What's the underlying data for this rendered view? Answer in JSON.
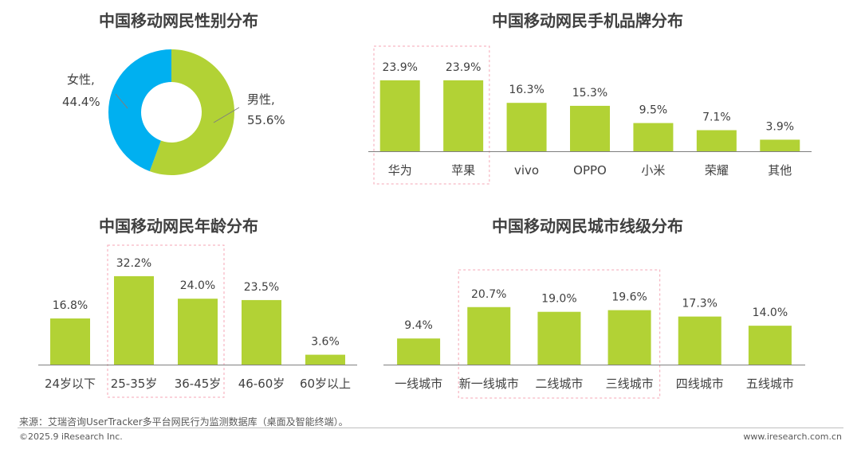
{
  "colors": {
    "bar": "#b2d235",
    "male": "#b2d235",
    "female": "#00b0f0",
    "axis": "#7f7f7f",
    "highlight_box": "#f4a6b4"
  },
  "chart_data": [
    {
      "type": "pie",
      "title": "中国移动网民性别分布",
      "categories": [
        "男性",
        "女性"
      ],
      "values": [
        55.6,
        44.4
      ],
      "labels": [
        "男性,",
        "女性,"
      ],
      "value_labels": [
        "55.6%",
        "44.4%"
      ],
      "unit": "%",
      "donut": true
    },
    {
      "type": "bar",
      "title": "中国移动网民手机品牌分布",
      "categories": [
        "华为",
        "苹果",
        "vivo",
        "OPPO",
        "小米",
        "荣耀",
        "其他"
      ],
      "values": [
        23.9,
        23.9,
        16.3,
        15.3,
        9.5,
        7.1,
        3.9
      ],
      "value_labels": [
        "23.9%",
        "23.9%",
        "16.3%",
        "15.3%",
        "9.5%",
        "7.1%",
        "3.9%"
      ],
      "unit": "%",
      "highlight": [
        0,
        1
      ]
    },
    {
      "type": "bar",
      "title": "中国移动网民年龄分布",
      "categories": [
        "24岁以下",
        "25-35岁",
        "36-45岁",
        "46-60岁",
        "60岁以上"
      ],
      "values": [
        16.8,
        32.2,
        24.0,
        23.5,
        3.6
      ],
      "value_labels": [
        "16.8%",
        "32.2%",
        "24.0%",
        "23.5%",
        "3.6%"
      ],
      "unit": "%",
      "highlight": [
        1,
        2
      ]
    },
    {
      "type": "bar",
      "title": "中国移动网民城市线级分布",
      "categories": [
        "一线城市",
        "新一线城市",
        "二线城市",
        "三线城市",
        "四线城市",
        "五线城市"
      ],
      "values": [
        9.4,
        20.7,
        19.0,
        19.6,
        17.3,
        14.0
      ],
      "value_labels": [
        "9.4%",
        "20.7%",
        "19.0%",
        "19.6%",
        "17.3%",
        "14.0%"
      ],
      "unit": "%",
      "highlight": [
        1,
        2,
        3
      ]
    }
  ],
  "footer": {
    "source": "来源：艾瑞咨询UserTracker多平台网民行为监测数据库（桌面及智能终端）。",
    "copyright": "©2025.9 iResearch Inc.",
    "website": "www.iresearch.com.cn"
  }
}
